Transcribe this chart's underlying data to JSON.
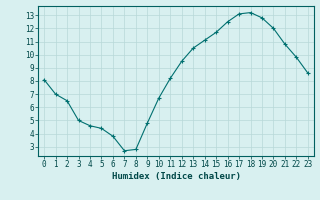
{
  "x": [
    0,
    1,
    2,
    3,
    4,
    5,
    6,
    7,
    8,
    9,
    10,
    11,
    12,
    13,
    14,
    15,
    16,
    17,
    18,
    19,
    20,
    21,
    22,
    23
  ],
  "y": [
    8.1,
    7.0,
    6.5,
    5.0,
    4.6,
    4.4,
    3.8,
    2.7,
    2.8,
    4.8,
    6.7,
    8.2,
    9.5,
    10.5,
    11.1,
    11.7,
    12.5,
    13.1,
    13.2,
    12.8,
    12.0,
    10.8,
    9.8,
    8.6
  ],
  "xlabel": "Humidex (Indice chaleur)",
  "bg_color": "#d8f0f0",
  "grid_color": "#b8d8d8",
  "line_color": "#007070",
  "marker_color": "#007070",
  "xlim": [
    -0.5,
    23.5
  ],
  "ylim": [
    2.3,
    13.7
  ],
  "yticks": [
    3,
    4,
    5,
    6,
    7,
    8,
    9,
    10,
    11,
    12,
    13
  ],
  "xticks": [
    0,
    1,
    2,
    3,
    4,
    5,
    6,
    7,
    8,
    9,
    10,
    11,
    12,
    13,
    14,
    15,
    16,
    17,
    18,
    19,
    20,
    21,
    22,
    23
  ],
  "tick_fontsize": 5.5,
  "xlabel_fontsize": 6.5
}
